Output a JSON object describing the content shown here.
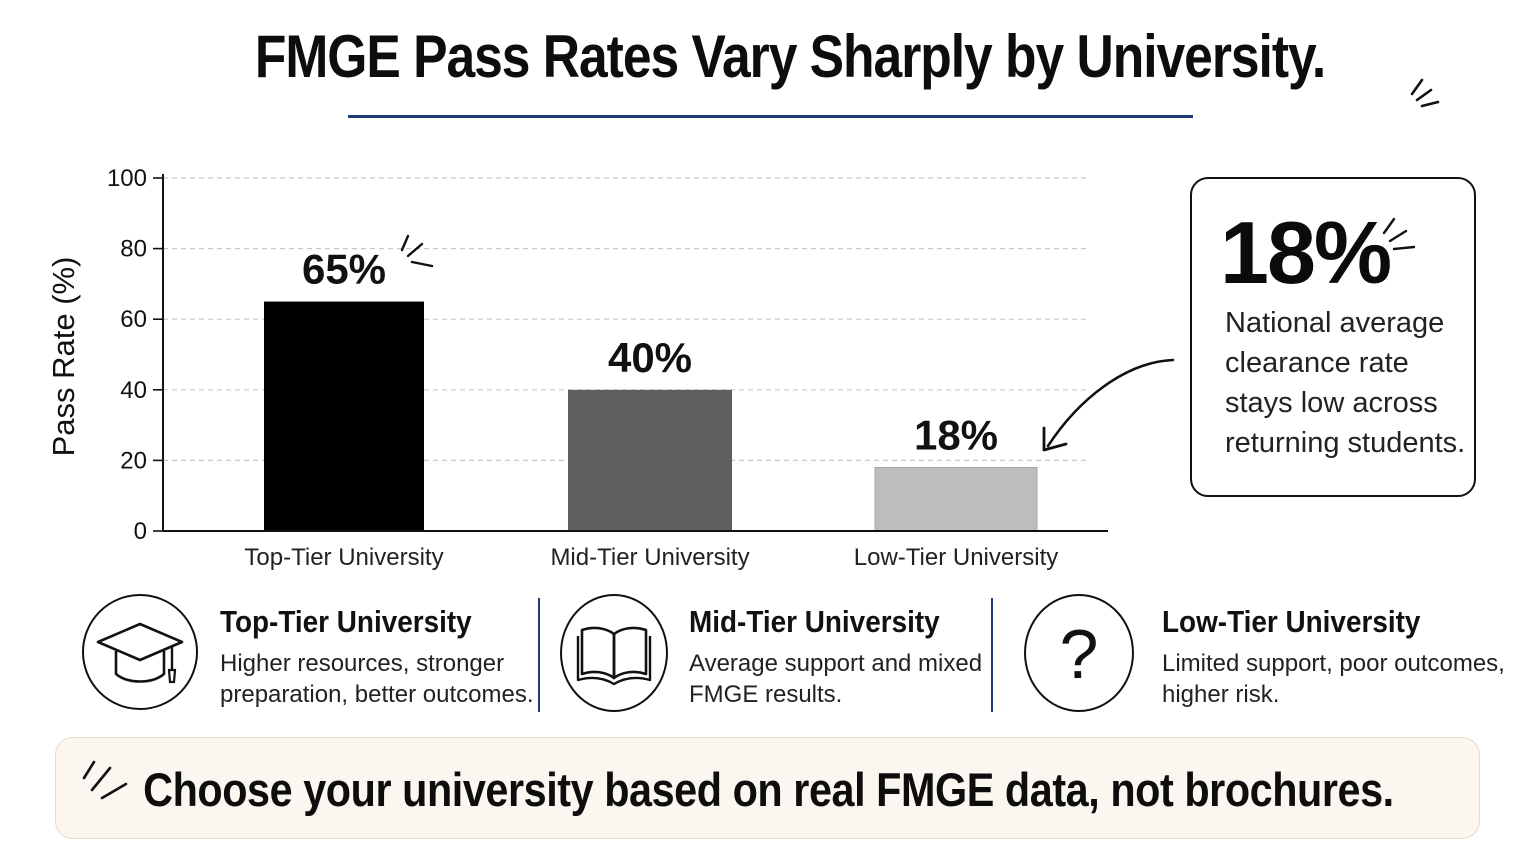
{
  "title": "FMGE Pass Rates Vary Sharply by University.",
  "chart_data": {
    "type": "bar",
    "categories": [
      "Top-Tier University",
      "Mid-Tier University",
      "Low-Tier University"
    ],
    "values": [
      65,
      40,
      18
    ],
    "value_labels": [
      "65%",
      "40%",
      "18%"
    ],
    "bar_colors": [
      "#000000",
      "#5f5f5f",
      "#bdbdbd"
    ],
    "ylabel": "Pass Rate (%)",
    "xlabel": "",
    "ylim": [
      0,
      100
    ],
    "yticks": [
      0,
      20,
      40,
      60,
      80,
      100
    ],
    "grid": true
  },
  "callout": {
    "stat": "18%",
    "lines": [
      "National average",
      "clearance rate",
      "stays low across",
      "returning students."
    ]
  },
  "cards": [
    {
      "icon": "graduation-cap-icon",
      "title": "Top-Tier University",
      "lines": [
        "Higher resources, stronger",
        "preparation, better outcomes."
      ]
    },
    {
      "icon": "open-book-icon",
      "title": "Mid-Tier University",
      "lines": [
        "Average support and mixed",
        "FMGE results."
      ]
    },
    {
      "icon": "question-mark-icon",
      "title": "Low-Tier University",
      "lines": [
        "Limited support, poor outcomes,",
        "higher risk."
      ]
    }
  ],
  "banner": {
    "text": "Choose your university based on real FMGE data, not brochures."
  },
  "colors": {
    "accent_navy": "#1f3a78",
    "banner_bg": "#fbf7f0"
  }
}
